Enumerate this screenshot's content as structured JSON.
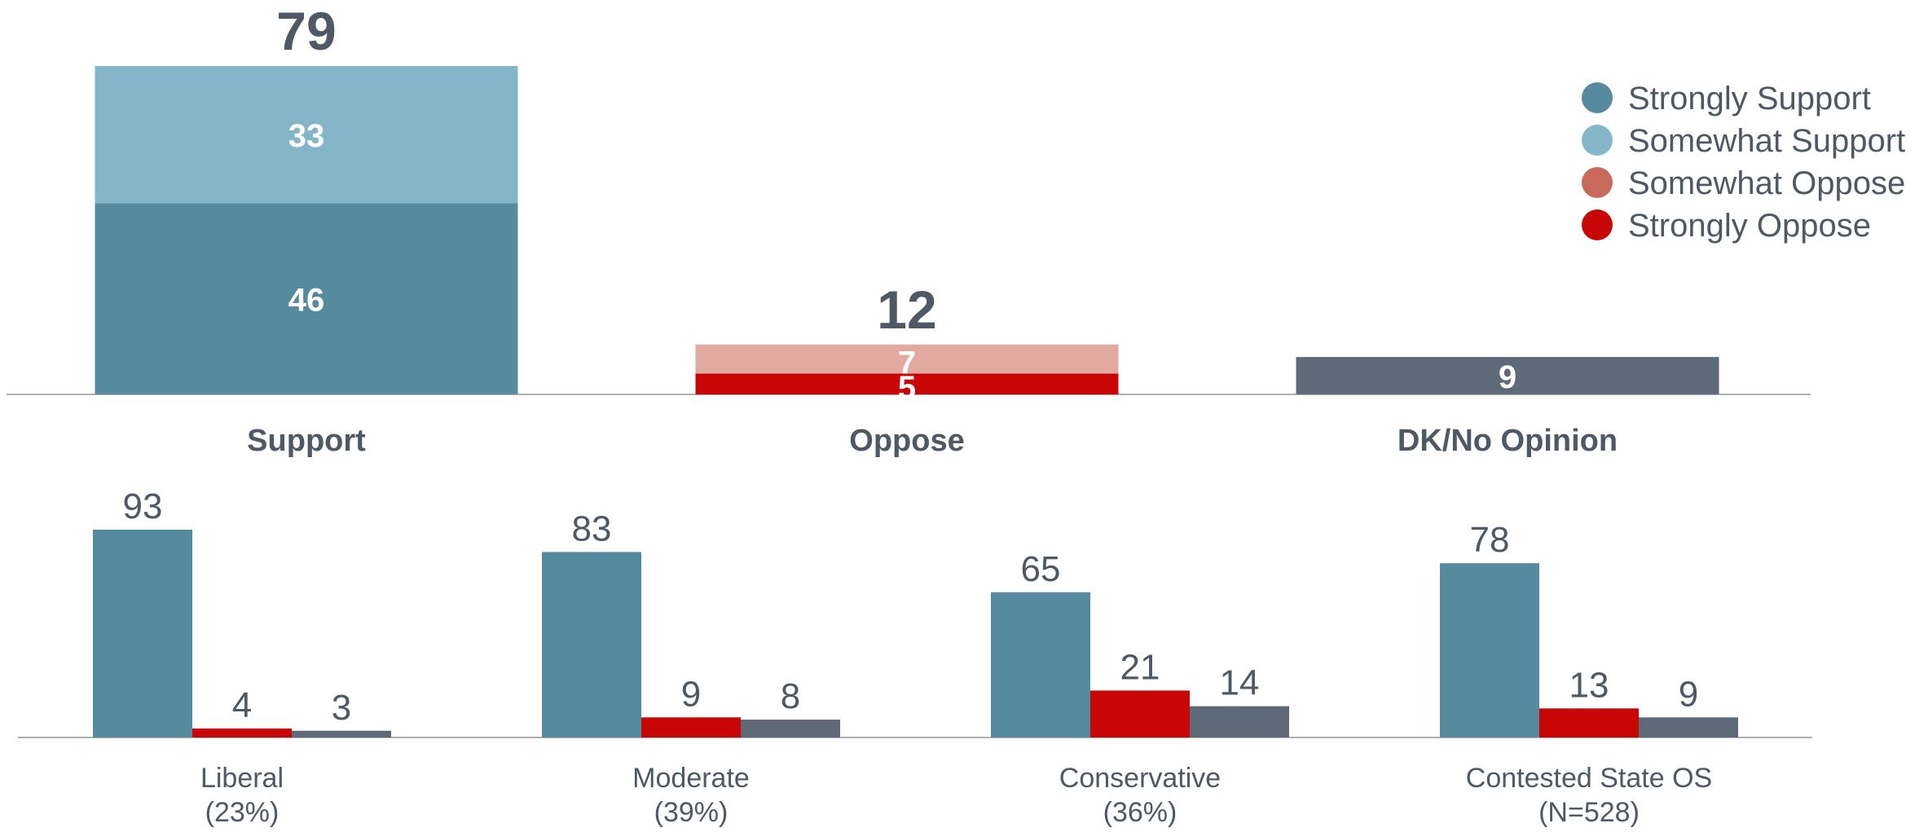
{
  "colors": {
    "strongly_support": "#568A9E",
    "somewhat_support": "#84B5C8",
    "somewhat_oppose": "#E2A9A0",
    "strongly_oppose": "#C80606",
    "dk": "#5F6A78",
    "legend_somewhat_oppose": "#C8695B",
    "text_dark": "#4F5966",
    "axis": "#B0B0B0",
    "white": "#FFFFFF"
  },
  "chart_data": [
    {
      "type": "bar",
      "stacked": true,
      "categories": [
        "Support",
        "Oppose",
        "DK/No Opinion"
      ],
      "totals": [
        "79",
        "12",
        ""
      ],
      "series": [
        {
          "name": "Strongly Support",
          "values": [
            46,
            0,
            0
          ]
        },
        {
          "name": "Somewhat Support",
          "values": [
            33,
            0,
            0
          ]
        },
        {
          "name": "Strongly Oppose",
          "values": [
            0,
            5,
            0
          ]
        },
        {
          "name": "Somewhat Oppose",
          "values": [
            0,
            7,
            0
          ]
        },
        {
          "name": "DK/No Opinion",
          "values": [
            0,
            0,
            9
          ]
        }
      ],
      "legend": {
        "position": "top-right",
        "items": [
          "Strongly Support",
          "Somewhat Support",
          "Somewhat Oppose",
          "Strongly Oppose"
        ]
      },
      "ylim": [
        0,
        79
      ]
    },
    {
      "type": "bar",
      "categories": [
        "Liberal",
        "Moderate",
        "Conservative",
        "Contested State OS"
      ],
      "sublabels": [
        "(23%)",
        "(39%)",
        "(36%)",
        "(N=528)"
      ],
      "series": [
        {
          "values": [
            93,
            83,
            65,
            78
          ]
        },
        {
          "values": [
            4,
            9,
            21,
            13
          ]
        },
        {
          "values": [
            3,
            8,
            14,
            9
          ]
        }
      ],
      "ylim": [
        0,
        93
      ]
    }
  ]
}
